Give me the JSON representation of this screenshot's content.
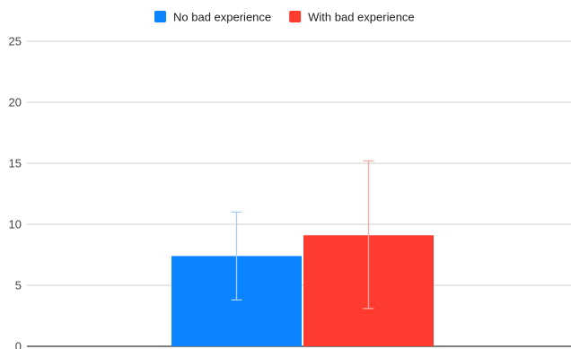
{
  "chart_data": {
    "type": "bar",
    "title": "",
    "xlabel": "",
    "ylabel": "",
    "ylim": [
      0,
      25
    ],
    "yticks": [
      0,
      5,
      10,
      15,
      20,
      25
    ],
    "grid": true,
    "legend_position": "top-center",
    "series": [
      {
        "name": "No bad experience",
        "value": 7.4,
        "error_low": 3.8,
        "error_high": 11.0,
        "color": "#0a84ff",
        "error_color": "#a9cdf5"
      },
      {
        "name": "With bad experience",
        "value": 9.1,
        "error_low": 3.1,
        "error_high": 15.2,
        "color": "#ff3b30",
        "error_color": "#f5aaa5"
      }
    ]
  }
}
